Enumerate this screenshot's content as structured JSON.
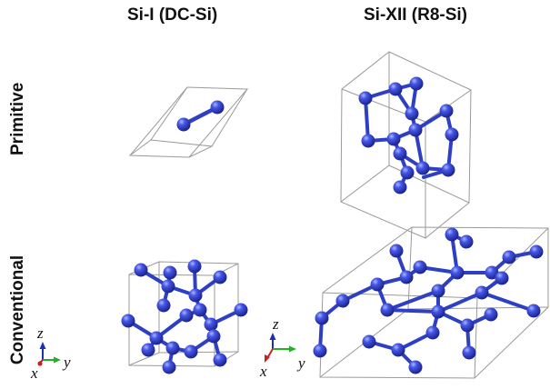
{
  "columns": [
    "Si-I (DC-Si)",
    "Si-XII (R8-Si)"
  ],
  "rows": [
    "Primitive",
    "Conventional"
  ],
  "axes": {
    "x": "x",
    "y": "y",
    "z": "z"
  },
  "colors": {
    "atom": "#2a38c8",
    "bond": "#2f3fc4",
    "cell_edge": "#9a9a9a",
    "axis_x": "#cc1f1f",
    "axis_y": "#1fb41f",
    "axis_z": "#1f2fb4"
  }
}
